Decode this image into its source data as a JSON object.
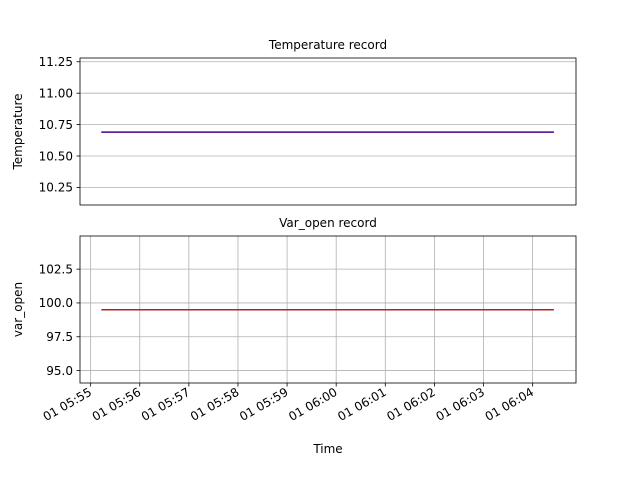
{
  "chart_data": [
    {
      "type": "line",
      "title": "Temperature record",
      "xlabel": "",
      "ylabel": "Temperature",
      "x_type": "time",
      "xlim": [
        "01 05:54:47",
        "01 06:04:53"
      ],
      "ylim": [
        10.11,
        11.28
      ],
      "yticks": [
        10.25,
        10.5,
        10.75,
        11.0,
        11.25
      ],
      "ytick_labels": [
        "10.25",
        "10.50",
        "10.75",
        "11.00",
        "11.25"
      ],
      "xticks_visible": false,
      "grid": "y-only",
      "series": [
        {
          "color": "#4b0082",
          "x": [
            "01 05:55:13",
            "01 06:04:26"
          ],
          "values": [
            10.69,
            10.69
          ]
        }
      ]
    },
    {
      "type": "line",
      "title": "Var_open record",
      "xlabel": "Time",
      "ylabel": "var_open",
      "x_type": "time",
      "xlim": [
        "01 05:54:47",
        "01 06:04:53"
      ],
      "ylim": [
        94.08,
        104.95
      ],
      "yticks": [
        95.0,
        97.5,
        100.0,
        102.5
      ],
      "ytick_labels": [
        "95.0",
        "97.5",
        "100.0",
        "102.5"
      ],
      "xticks": [
        "01 05:55",
        "01 05:56",
        "01 05:57",
        "01 05:58",
        "01 05:59",
        "01 06:00",
        "01 06:01",
        "01 06:02",
        "01 06:03",
        "01 06:04"
      ],
      "xtick_labels": [
        "01 05:55",
        "01 05:56",
        "01 05:57",
        "01 05:58",
        "01 05:59",
        "01 06:00",
        "01 06:01",
        "01 06:02",
        "01 06:03",
        "01 06:04"
      ],
      "grid": "both",
      "series": [
        {
          "color": "#b22222",
          "x": [
            "01 05:55:13",
            "01 06:04:26"
          ],
          "values": [
            99.5,
            99.5
          ]
        }
      ]
    }
  ]
}
